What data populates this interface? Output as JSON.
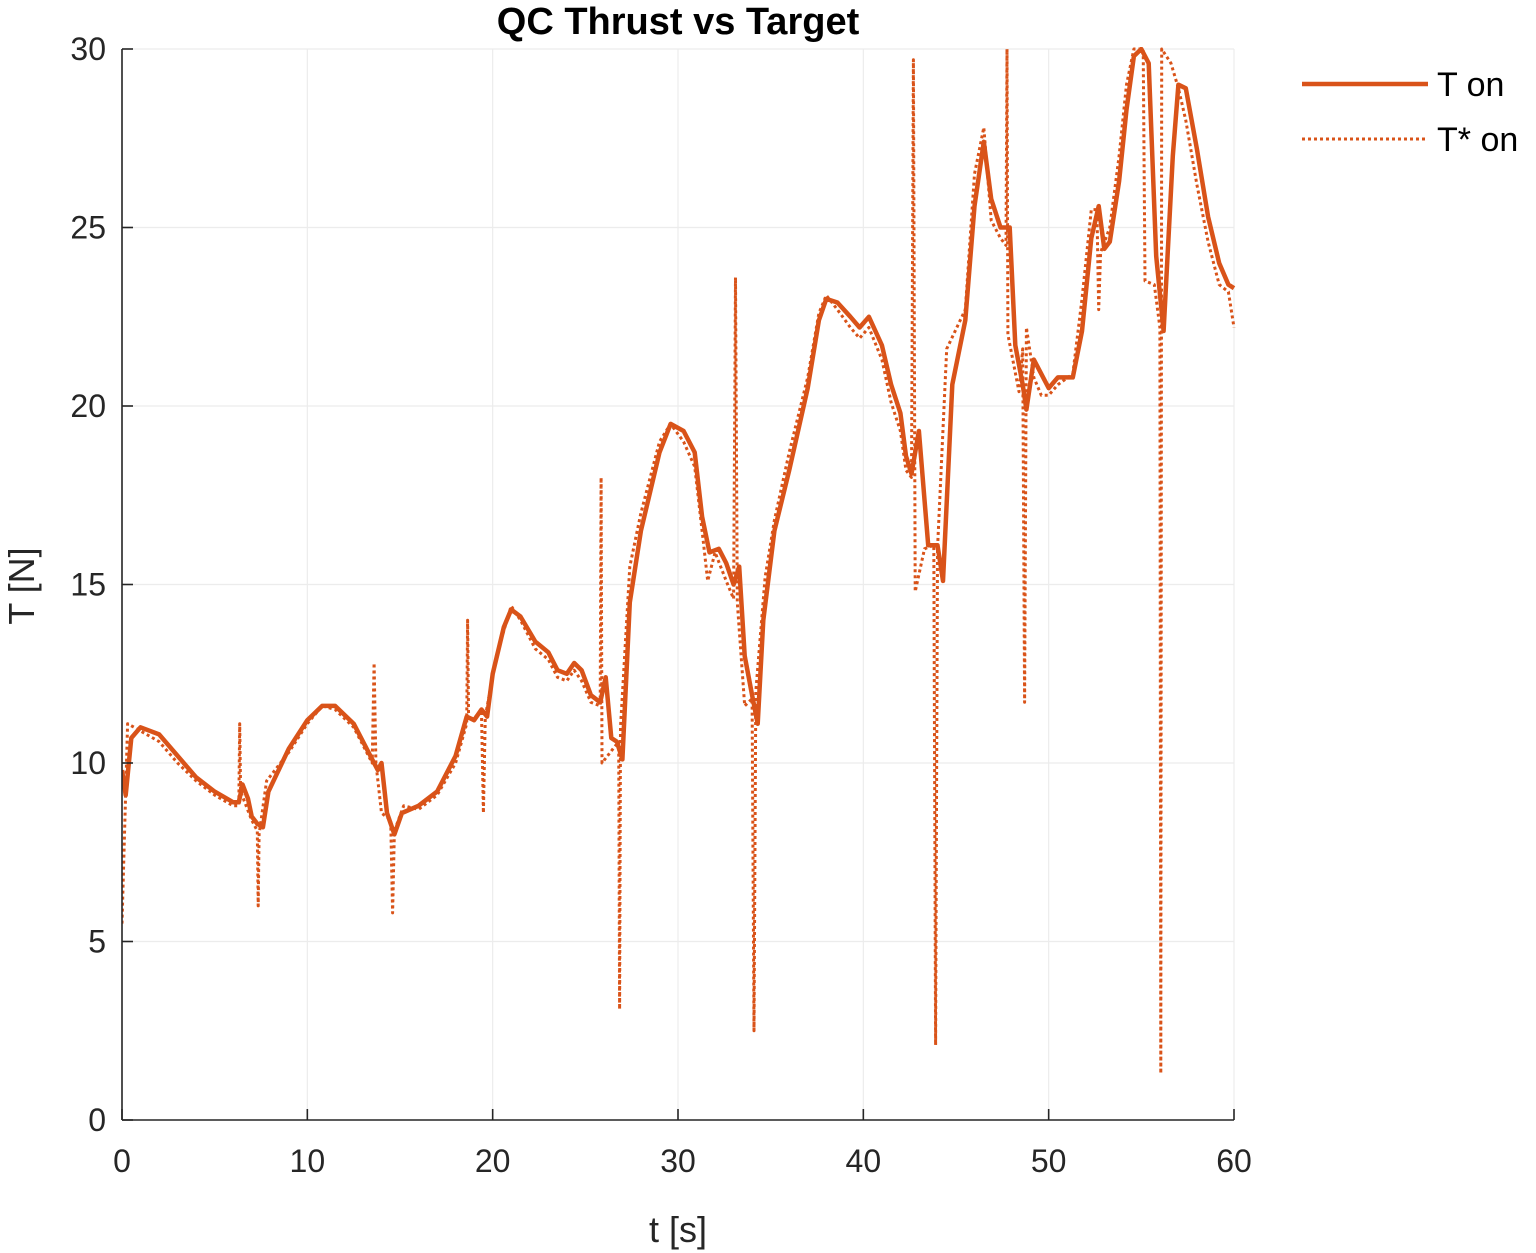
{
  "chart_data": {
    "type": "line",
    "title": "QC Thrust vs Target",
    "xlabel": "t [s]",
    "ylabel": "T [N]",
    "xlim": [
      0,
      60
    ],
    "ylim": [
      0,
      30
    ],
    "xticks": [
      "0",
      "10",
      "20",
      "30",
      "40",
      "50",
      "60"
    ],
    "yticks": [
      "0",
      "5",
      "10",
      "15",
      "20",
      "25",
      "30"
    ],
    "grid": true,
    "legend_position": "top-right, outside plot area",
    "color": "#D95319",
    "series": [
      {
        "name": "T on",
        "style": "solid",
        "points": [
          [
            0,
            9.8
          ],
          [
            0.2,
            9.1
          ],
          [
            0.5,
            10.7
          ],
          [
            1,
            11
          ],
          [
            2,
            10.8
          ],
          [
            3,
            10.2
          ],
          [
            4,
            9.6
          ],
          [
            5,
            9.2
          ],
          [
            6,
            8.9
          ],
          [
            6.3,
            8.9
          ],
          [
            6.5,
            9.4
          ],
          [
            6.8,
            9.0
          ],
          [
            7,
            8.5
          ],
          [
            7.3,
            8.3
          ],
          [
            7.6,
            8.2
          ],
          [
            7.9,
            9.2
          ],
          [
            9,
            10.4
          ],
          [
            10,
            11.2
          ],
          [
            10.8,
            11.6
          ],
          [
            11.5,
            11.6
          ],
          [
            12.5,
            11.1
          ],
          [
            13.5,
            10.1
          ],
          [
            13.8,
            9.8
          ],
          [
            14,
            10.0
          ],
          [
            14.3,
            8.6
          ],
          [
            14.7,
            8.0
          ],
          [
            15.1,
            8.6
          ],
          [
            16,
            8.8
          ],
          [
            17,
            9.2
          ],
          [
            18,
            10.2
          ],
          [
            18.6,
            11.3
          ],
          [
            19,
            11.2
          ],
          [
            19.4,
            11.5
          ],
          [
            19.7,
            11.3
          ],
          [
            20,
            12.5
          ],
          [
            20.6,
            13.8
          ],
          [
            21,
            14.3
          ],
          [
            21.5,
            14.1
          ],
          [
            22.3,
            13.4
          ],
          [
            23,
            13.1
          ],
          [
            23.5,
            12.6
          ],
          [
            24,
            12.5
          ],
          [
            24.4,
            12.8
          ],
          [
            24.8,
            12.6
          ],
          [
            25.3,
            11.9
          ],
          [
            25.8,
            11.7
          ],
          [
            26.1,
            12.4
          ],
          [
            26.4,
            10.7
          ],
          [
            26.7,
            10.6
          ],
          [
            27,
            10.1
          ],
          [
            27.4,
            14.5
          ],
          [
            28,
            16.5
          ],
          [
            29,
            18.7
          ],
          [
            29.6,
            19.5
          ],
          [
            30.3,
            19.3
          ],
          [
            30.9,
            18.7
          ],
          [
            31.3,
            16.9
          ],
          [
            31.7,
            15.9
          ],
          [
            32.2,
            16.0
          ],
          [
            32.6,
            15.6
          ],
          [
            33,
            15.0
          ],
          [
            33.3,
            15.5
          ],
          [
            33.6,
            13.0
          ],
          [
            34,
            11.9
          ],
          [
            34.3,
            11.1
          ],
          [
            34.6,
            14.0
          ],
          [
            35.2,
            16.5
          ],
          [
            36,
            18.2
          ],
          [
            37,
            20.5
          ],
          [
            37.6,
            22.4
          ],
          [
            38,
            23.0
          ],
          [
            38.6,
            22.9
          ],
          [
            39.3,
            22.5
          ],
          [
            39.8,
            22.2
          ],
          [
            40.3,
            22.5
          ],
          [
            41,
            21.7
          ],
          [
            41.5,
            20.6
          ],
          [
            42,
            19.8
          ],
          [
            42.3,
            18.6
          ],
          [
            42.6,
            18.1
          ],
          [
            43,
            19.3
          ],
          [
            43.5,
            16.1
          ],
          [
            44,
            16.1
          ],
          [
            44.3,
            15.1
          ],
          [
            44.8,
            20.6
          ],
          [
            45.5,
            22.4
          ],
          [
            46,
            25.6
          ],
          [
            46.5,
            27.4
          ],
          [
            46.9,
            25.8
          ],
          [
            47.4,
            25.0
          ],
          [
            47.9,
            25.0
          ],
          [
            48.2,
            21.7
          ],
          [
            48.6,
            20.6
          ],
          [
            48.8,
            19.9
          ],
          [
            49.2,
            21.3
          ],
          [
            49.6,
            20.9
          ],
          [
            50,
            20.5
          ],
          [
            50.5,
            20.8
          ],
          [
            51.3,
            20.8
          ],
          [
            51.8,
            22.1
          ],
          [
            52.3,
            24.7
          ],
          [
            52.7,
            25.6
          ],
          [
            53,
            24.4
          ],
          [
            53.3,
            24.6
          ],
          [
            53.8,
            26.3
          ],
          [
            54.2,
            28.3
          ],
          [
            54.6,
            29.8
          ],
          [
            55,
            30
          ],
          [
            55.4,
            29.6
          ],
          [
            55.8,
            24.2
          ],
          [
            56.2,
            22.1
          ],
          [
            56.7,
            27.0
          ],
          [
            57,
            29.0
          ],
          [
            57.4,
            28.9
          ],
          [
            58,
            27.2
          ],
          [
            58.6,
            25.3
          ],
          [
            59.2,
            24.0
          ],
          [
            59.7,
            23.4
          ],
          [
            60,
            23.3
          ]
        ]
      },
      {
        "name": "T* on",
        "style": "dotted",
        "points": [
          [
            0,
            5.5
          ],
          [
            0.2,
            9.2
          ],
          [
            0.3,
            11.1
          ],
          [
            1,
            10.9
          ],
          [
            2,
            10.6
          ],
          [
            3,
            10.0
          ],
          [
            4,
            9.5
          ],
          [
            5,
            9.1
          ],
          [
            6,
            8.8
          ],
          [
            6.3,
            8.8
          ],
          [
            6.35,
            11.1
          ],
          [
            6.4,
            9.2
          ],
          [
            7,
            8.4
          ],
          [
            7.3,
            8.1
          ],
          [
            7.35,
            6.0
          ],
          [
            7.4,
            8.0
          ],
          [
            7.8,
            9.5
          ],
          [
            9,
            10.3
          ],
          [
            10,
            11.1
          ],
          [
            10.8,
            11.6
          ],
          [
            11.5,
            11.5
          ],
          [
            12.5,
            11.0
          ],
          [
            13.5,
            10.0
          ],
          [
            13.6,
            12.8
          ],
          [
            13.7,
            10.0
          ],
          [
            14,
            8.6
          ],
          [
            14.5,
            8.4
          ],
          [
            14.6,
            5.8
          ],
          [
            14.7,
            8.1
          ],
          [
            15.2,
            8.8
          ],
          [
            16,
            8.7
          ],
          [
            17,
            9.1
          ],
          [
            18,
            10.0
          ],
          [
            18.6,
            11.1
          ],
          [
            18.65,
            14.0
          ],
          [
            18.7,
            11.2
          ],
          [
            19.4,
            11.4
          ],
          [
            19.5,
            8.6
          ],
          [
            19.6,
            11.3
          ],
          [
            20.2,
            13.0
          ],
          [
            21,
            14.4
          ],
          [
            21.5,
            14.0
          ],
          [
            22.3,
            13.2
          ],
          [
            23,
            12.9
          ],
          [
            23.5,
            12.4
          ],
          [
            24,
            12.3
          ],
          [
            24.4,
            12.6
          ],
          [
            24.8,
            12.3
          ],
          [
            25.3,
            11.7
          ],
          [
            25.8,
            11.6
          ],
          [
            25.85,
            18.0
          ],
          [
            25.9,
            10.0
          ],
          [
            26.5,
            10.4
          ],
          [
            26.8,
            10.6
          ],
          [
            26.85,
            3.1
          ],
          [
            26.9,
            11.0
          ],
          [
            27.4,
            15.5
          ],
          [
            28,
            17.0
          ],
          [
            29,
            19.0
          ],
          [
            29.6,
            19.5
          ],
          [
            30.3,
            19.0
          ],
          [
            30.9,
            18.3
          ],
          [
            31.3,
            16.5
          ],
          [
            31.6,
            15.1
          ],
          [
            32,
            15.9
          ],
          [
            32.6,
            15.1
          ],
          [
            33,
            14.6
          ],
          [
            33.1,
            23.6
          ],
          [
            33.2,
            14.5
          ],
          [
            33.6,
            11.6
          ],
          [
            34,
            11.8
          ],
          [
            34.1,
            2.5
          ],
          [
            34.2,
            12.0
          ],
          [
            34.7,
            15.2
          ],
          [
            35.2,
            16.8
          ],
          [
            36,
            18.7
          ],
          [
            37,
            20.8
          ],
          [
            37.6,
            22.6
          ],
          [
            38,
            23.1
          ],
          [
            38.6,
            22.7
          ],
          [
            39.3,
            22.2
          ],
          [
            39.8,
            21.9
          ],
          [
            40.3,
            22.2
          ],
          [
            41,
            21.3
          ],
          [
            41.5,
            20.1
          ],
          [
            42,
            19.3
          ],
          [
            42.3,
            18.2
          ],
          [
            42.6,
            18.0
          ],
          [
            42.7,
            29.7
          ],
          [
            42.8,
            14.8
          ],
          [
            43.3,
            16.0
          ],
          [
            43.8,
            16.1
          ],
          [
            43.9,
            2.1
          ],
          [
            44,
            16.0
          ],
          [
            44.5,
            21.6
          ],
          [
            45.5,
            22.7
          ],
          [
            46,
            26.5
          ],
          [
            46.5,
            27.8
          ],
          [
            46.9,
            25.2
          ],
          [
            47.4,
            24.7
          ],
          [
            47.7,
            24.5
          ],
          [
            47.75,
            30
          ],
          [
            47.8,
            22.0
          ],
          [
            48.4,
            20.4
          ],
          [
            48.6,
            21.6
          ],
          [
            48.7,
            11.7
          ],
          [
            48.8,
            22.2
          ],
          [
            49.2,
            20.8
          ],
          [
            49.6,
            20.3
          ],
          [
            50,
            20.3
          ],
          [
            50.5,
            20.6
          ],
          [
            51.3,
            20.9
          ],
          [
            51.8,
            23.0
          ],
          [
            52.3,
            25.5
          ],
          [
            52.6,
            25.5
          ],
          [
            52.7,
            22.7
          ],
          [
            52.8,
            24.3
          ],
          [
            53.3,
            25.0
          ],
          [
            53.8,
            27.0
          ],
          [
            54.2,
            29.0
          ],
          [
            54.6,
            30
          ],
          [
            55.1,
            30
          ],
          [
            55.2,
            23.5
          ],
          [
            55.7,
            23.4
          ],
          [
            56,
            22.2
          ],
          [
            56.05,
            1.3
          ],
          [
            56.1,
            30
          ],
          [
            56.6,
            29.6
          ],
          [
            57,
            28.9
          ],
          [
            57.4,
            28.0
          ],
          [
            58,
            26.2
          ],
          [
            58.6,
            24.6
          ],
          [
            59.2,
            23.4
          ],
          [
            59.7,
            23.2
          ],
          [
            60,
            22.2
          ]
        ]
      }
    ]
  }
}
